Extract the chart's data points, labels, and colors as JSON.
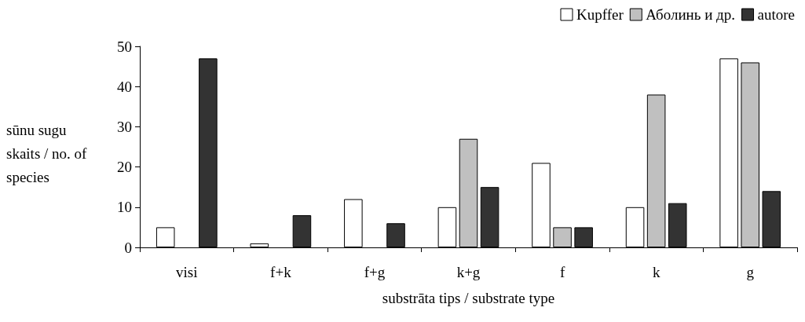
{
  "chart_data": {
    "type": "bar",
    "xlabel": "substrāta tips / substrate type",
    "ylabel": "sūnu sugu skaits / no. of species",
    "categories": [
      "visi",
      "f+k",
      "f+g",
      "k+g",
      "f",
      "k",
      "g"
    ],
    "series": [
      {
        "name": "Kupffer",
        "color": "#ffffff",
        "values": [
          5,
          1,
          12,
          10,
          21,
          10,
          47
        ]
      },
      {
        "name": "Аболинь и др.",
        "color": "#c0c0c0",
        "values": [
          null,
          null,
          null,
          27,
          5,
          38,
          46
        ]
      },
      {
        "name": "autore",
        "color": "#333333",
        "values": [
          47,
          8,
          6,
          15,
          5,
          11,
          14
        ]
      }
    ],
    "ylim": [
      0,
      50
    ],
    "yticks": [
      0,
      10,
      20,
      30,
      40,
      50
    ],
    "grid": false,
    "legend": "top right"
  }
}
